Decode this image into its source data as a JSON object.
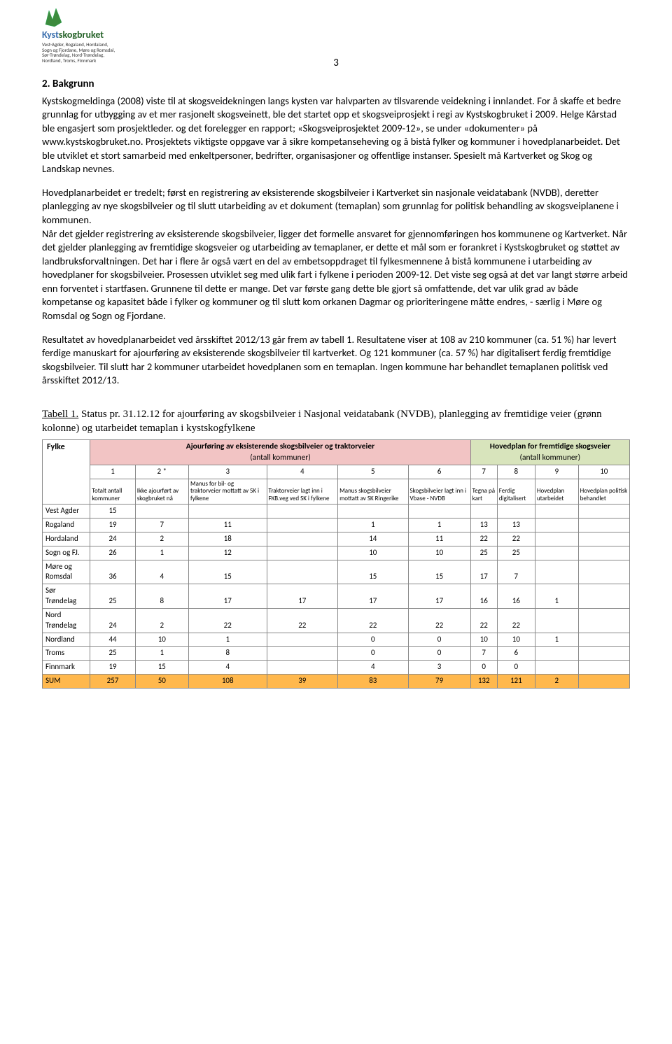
{
  "logo": {
    "title_a": "Kyst",
    "title_b": "skogbruket",
    "subtitle": "Vest-Agder, Rogaland, Hordaland,\nSogn og Fjordane, Møre og Romsdal,\nSør-Trøndelag, Nord-Trøndelag,\nNordland, Troms, Finnmark"
  },
  "page_number": "3",
  "heading": "2.   Bakgrunn",
  "para1": "Kystskogmeldinga (2008) viste til at skogsveidekningen langs kysten var halvparten av tilsvarende veidekning i innlandet.  For å skaffe et bedre grunnlag for utbygging av et mer rasjonelt skogsveinett, ble det startet opp et skogsveiprosjekt i regi av Kystskogbruket i 2009. Helge Kårstad ble engasjert som prosjektleder. og det forelegger en rapport; «Skogsveiprosjektet 2009-12», se under «dokumenter» på www.kystskogbruket.no. Prosjektets viktigste oppgave var å sikre kompetanseheving og å bistå fylker og kommuner i hovedplanarbeidet. Det ble utviklet et stort samarbeid med enkeltpersoner, bedrifter, organisasjoner og offentlige instanser. Spesielt må Kartverket og Skog og Landskap nevnes.",
  "para2": "Hovedplanarbeidet er tredelt; først en registrering av eksisterende skogsbilveier i Kartverket sin nasjonale veidatabank (NVDB), deretter planlegging av nye skogsbilveier og til slutt utarbeiding av et dokument (temaplan) som grunnlag for politisk behandling av skogsveiplanene i kommunen.\nNår det gjelder registrering av eksisterende skogsbilveier, ligger det formelle ansvaret for gjennomføringen hos kommunene og Kartverket.  Når det gjelder planlegging av fremtidige skogsveier og utarbeiding av temaplaner, er dette et mål som er forankret i Kystskogbruket og støttet av landbruksforvaltningen.  Det har i flere år også vært en del av embetsoppdraget til fylkesmennene å bistå kommunene i utarbeiding av hovedplaner for skogsbilveier. Prosessen utviklet seg med ulik fart i fylkene i perioden 2009-12. Det viste seg også at det var langt større arbeid enn forventet i startfasen. Grunnene til dette er mange. Det var første gang dette ble gjort så omfattende, det var ulik grad av både kompetanse og kapasitet både i fylker og kommuner og til slutt kom orkanen Dagmar og prioriteringene måtte endres, - særlig i Møre og Romsdal og Sogn og Fjordane.",
  "para3": "Resultatet av hovedplanarbeidet ved årsskiftet 2012/13 går frem av tabell 1. Resultatene viser at 108 av 210 kommuner (ca. 51 %) har levert ferdige manuskart for ajourføring av eksisterende skogsbilveier til kartverket. Og 121 kommuner (ca. 57 %) har digitalisert ferdig fremtidige skogsbilveier. Til slutt har 2 kommuner utarbeidet hovedplanen som en temaplan. Ingen kommune har behandlet temaplanen politisk ved årsskiftet 2012/13.",
  "table_caption": "Tabell 1. Status pr. 31.12.12 for ajourføring av skogsbilveier i Nasjonal veidatabank (NVDB), planlegging av fremtidige veier (grønn kolonne) og utarbeidet temaplan i kystskogfylkene",
  "table": {
    "fylke_header": "Fylke",
    "group1_header": "Ajourføring av eksisterende skogsbilveier og traktorveier",
    "group1_sub": "(antall kommuner)",
    "group2_header": "Hovedplan for fremtidige skogsveier",
    "group2_sub": "(antall kommuner)",
    "colnums": [
      "1",
      "2 *",
      "3",
      "4",
      "5",
      "6",
      "7",
      "8",
      "9",
      "10"
    ],
    "subheads": [
      "Totalt antall kommuner",
      "Ikke ajourført av skogbruket nå",
      "Manus for bil- og traktorveier mottatt av SK i fylkene",
      "Traktorveier lagt inn i FKB.veg ved SK i fylkene",
      "Manus skogsbilveier mottatt av SK Ringerike",
      "Skogsbilveier lagt inn i Vbase - NVDB",
      "Tegna på kart",
      "Ferdig digitalisert",
      "Hovedplan utarbeidet",
      "Hovedplan politisk behandlet"
    ],
    "rows": [
      {
        "label": "Vest Agder",
        "c": [
          "15",
          "",
          "",
          "",
          "",
          "",
          "",
          "",
          "",
          ""
        ]
      },
      {
        "label": "Rogaland",
        "c": [
          "19",
          "7",
          "11",
          "",
          "1",
          "1",
          "13",
          "13",
          "",
          ""
        ]
      },
      {
        "label": "Hordaland",
        "c": [
          "24",
          "2",
          "18",
          "",
          "14",
          "11",
          "22",
          "22",
          "",
          ""
        ]
      },
      {
        "label": "Sogn og FJ.",
        "c": [
          "26",
          "1",
          "12",
          "",
          "10",
          "10",
          "25",
          "25",
          "",
          ""
        ]
      },
      {
        "label": "Møre og Romsdal",
        "c": [
          "36",
          "4",
          "15",
          "",
          "15",
          "15",
          "17",
          "7",
          "",
          ""
        ]
      },
      {
        "label": "Sør Trøndelag",
        "c": [
          "25",
          "8",
          "17",
          "17",
          "17",
          "17",
          "16",
          "16",
          "1",
          ""
        ]
      },
      {
        "label": "Nord Trøndelag",
        "c": [
          "24",
          "2",
          "22",
          "22",
          "22",
          "22",
          "22",
          "22",
          "",
          ""
        ]
      },
      {
        "label": "Nordland",
        "c": [
          "44",
          "10",
          "1",
          "",
          "0",
          "0",
          "10",
          "10",
          "1",
          ""
        ]
      },
      {
        "label": "Troms",
        "c": [
          "25",
          "1",
          "8",
          "",
          "0",
          "0",
          "7",
          "6",
          "",
          ""
        ]
      },
      {
        "label": "Finnmark",
        "c": [
          "19",
          "15",
          "4",
          "",
          "4",
          "3",
          "0",
          "0",
          "",
          ""
        ]
      }
    ],
    "sum": {
      "label": "SUM",
      "c": [
        "257",
        "50",
        "108",
        "39",
        "83",
        "79",
        "132",
        "121",
        "2",
        ""
      ]
    },
    "colors": {
      "group1_bg": "#f2c4c4",
      "group2_bg": "#d8e4bc",
      "sum_bg": "#ffb84d",
      "border": "#888888",
      "text": "#000000",
      "background": "#ffffff"
    }
  }
}
